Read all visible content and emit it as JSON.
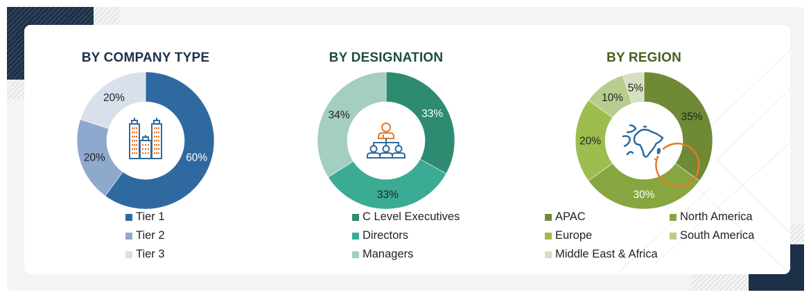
{
  "charts": [
    {
      "id": "company-type",
      "title": "BY COMPANY TYPE",
      "title_color": "#1d3049",
      "center_icon": "buildings-icon",
      "legend": [
        {
          "label": "Tier 1",
          "color": "#2e6aa0"
        },
        {
          "label": "Tier 2",
          "color": "#8fa8cd"
        },
        {
          "label": "Tier 3",
          "color": "#d8e0ec"
        }
      ],
      "slices": [
        {
          "label": "60%",
          "value": 60,
          "color": "#2e6aa0",
          "text_color": "#ffffff"
        },
        {
          "label": "20%",
          "value": 20,
          "color": "#8fa8cd",
          "text_color": "#222222"
        },
        {
          "label": "20%",
          "value": 20,
          "color": "#d8e0ec",
          "text_color": "#222222"
        }
      ]
    },
    {
      "id": "designation",
      "title": "BY DESIGNATION",
      "title_color": "#1d4e3a",
      "center_icon": "org-hierarchy-icon",
      "legend": [
        {
          "label": "C Level Executives",
          "color": "#2e8b72"
        },
        {
          "label": "Directors",
          "color": "#3bab93"
        },
        {
          "label": "Managers",
          "color": "#a3cec1"
        }
      ],
      "slices": [
        {
          "label": "33%",
          "value": 33,
          "color": "#2e8b72",
          "text_color": "#ffffff"
        },
        {
          "label": "33%",
          "value": 33,
          "color": "#3bab93",
          "text_color": "#222222"
        },
        {
          "label": "34%",
          "value": 34,
          "color": "#a3cec1",
          "text_color": "#222222"
        }
      ]
    },
    {
      "id": "region",
      "title": "BY REGION",
      "title_color": "#44601f",
      "center_icon": "globe-icon",
      "legend": [
        {
          "label": "APAC",
          "color": "#6e8a35"
        },
        {
          "label": "North America",
          "color": "#87a640"
        },
        {
          "label": "Europe",
          "color": "#9dbd4e"
        },
        {
          "label": "South America",
          "color": "#b7cc8f"
        },
        {
          "label": "Middle East & Africa",
          "color": "#d4e0bf"
        }
      ],
      "slices": [
        {
          "label": "35%",
          "value": 35,
          "color": "#6e8a35",
          "text_color": "#222222"
        },
        {
          "label": "30%",
          "value": 30,
          "color": "#87a640",
          "text_color": "#ffffff"
        },
        {
          "label": "20%",
          "value": 20,
          "color": "#9dbd4e",
          "text_color": "#222222"
        },
        {
          "label": "10%",
          "value": 10,
          "color": "#b7cc8f",
          "text_color": "#222222"
        },
        {
          "label": "5%",
          "value": 5,
          "color": "#d4e0bf",
          "text_color": "#222222"
        }
      ]
    }
  ],
  "chart_data": [
    {
      "type": "pie",
      "title": "BY COMPANY TYPE",
      "categories": [
        "Tier 1",
        "Tier 2",
        "Tier 3"
      ],
      "values": [
        60,
        20,
        20
      ],
      "unit": "%",
      "donut": true,
      "legend_position": "bottom"
    },
    {
      "type": "pie",
      "title": "BY DESIGNATION",
      "categories": [
        "C Level Executives",
        "Directors",
        "Managers"
      ],
      "values": [
        33,
        33,
        34
      ],
      "unit": "%",
      "donut": true,
      "legend_position": "bottom"
    },
    {
      "type": "pie",
      "title": "BY REGION",
      "categories": [
        "APAC",
        "North America",
        "Europe",
        "South America",
        "Middle East & Africa"
      ],
      "values": [
        35,
        30,
        20,
        10,
        5
      ],
      "unit": "%",
      "donut": true,
      "legend_position": "bottom"
    }
  ]
}
